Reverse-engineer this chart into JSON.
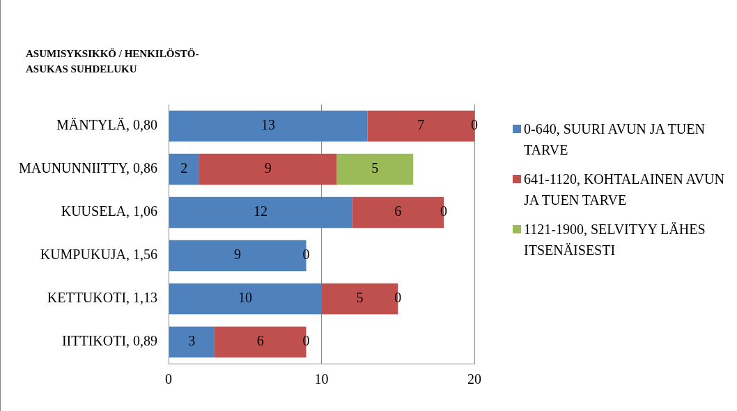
{
  "chart_data": {
    "type": "bar",
    "orientation": "horizontal",
    "stacked": true,
    "title": "ASUMISYKSIKKÖ / HENKILÖSTÖ-ASUKAS SUHDELUKU",
    "categories": [
      "MÄNTYLÄ, 0,80",
      "MAUNUNNIITTY, 0,86",
      "KUUSELA, 1,06",
      "KUMPUKUJA, 1,56",
      "KETTUKOTI, 1,13",
      "IITTIKOTI, 0,89"
    ],
    "series": [
      {
        "name": "0-640, SUURI AVUN JA TUEN TARVE",
        "color": "#4f81bd",
        "values": [
          13,
          2,
          12,
          9,
          10,
          3
        ],
        "value_labels": [
          "13",
          "2",
          "12",
          "9",
          "10",
          "3"
        ]
      },
      {
        "name": "641-1120, KOHTALAINEN AVUN JA TUEN TARVE",
        "color": "#c0504d",
        "values": [
          7,
          9,
          6,
          0,
          5,
          6
        ],
        "value_labels": [
          "7",
          "9",
          "6",
          "0",
          "5",
          "6"
        ]
      },
      {
        "name": "1121-1900, SELVITYY LÄHES ITSENÄISESTI",
        "color": "#9bbb59",
        "values": [
          0,
          5,
          0,
          0,
          0,
          0
        ],
        "value_labels": [
          "0",
          "5",
          "0",
          null,
          "0",
          "0"
        ]
      }
    ],
    "xlim": [
      0,
      20
    ],
    "xticks": [
      0,
      10,
      20
    ],
    "grid": "x",
    "legend": "right"
  }
}
